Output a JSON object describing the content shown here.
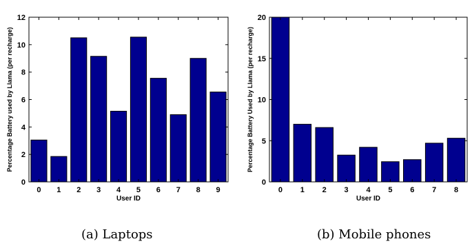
{
  "bar_color": "#00008f",
  "chart_data": [
    {
      "type": "bar",
      "title": "",
      "xlabel": "User ID",
      "ylabel": "Percentage Battery used by Llama (per recharge)",
      "categories": [
        "0",
        "1",
        "2",
        "3",
        "4",
        "5",
        "6",
        "7",
        "8",
        "9"
      ],
      "values": [
        3.05,
        1.85,
        10.5,
        9.15,
        5.15,
        10.55,
        7.55,
        4.9,
        9.0,
        6.55
      ],
      "ylim": [
        0,
        12
      ],
      "yticks": [
        0,
        2,
        4,
        6,
        8,
        10,
        12
      ],
      "grid": false,
      "caption": "(a) Laptops"
    },
    {
      "type": "bar",
      "title": "",
      "xlabel": "User ID",
      "ylabel": "Percentage Battery Used by Llama (per recharge)",
      "categories": [
        "0",
        "1",
        "2",
        "3",
        "4",
        "5",
        "6",
        "7",
        "8"
      ],
      "values": [
        20.0,
        7.0,
        6.6,
        3.25,
        4.2,
        2.45,
        2.7,
        4.7,
        5.3
      ],
      "ylim": [
        0,
        20
      ],
      "yticks": [
        0,
        5,
        10,
        15,
        20
      ],
      "grid": false,
      "caption": "(b) Mobile phones"
    }
  ]
}
